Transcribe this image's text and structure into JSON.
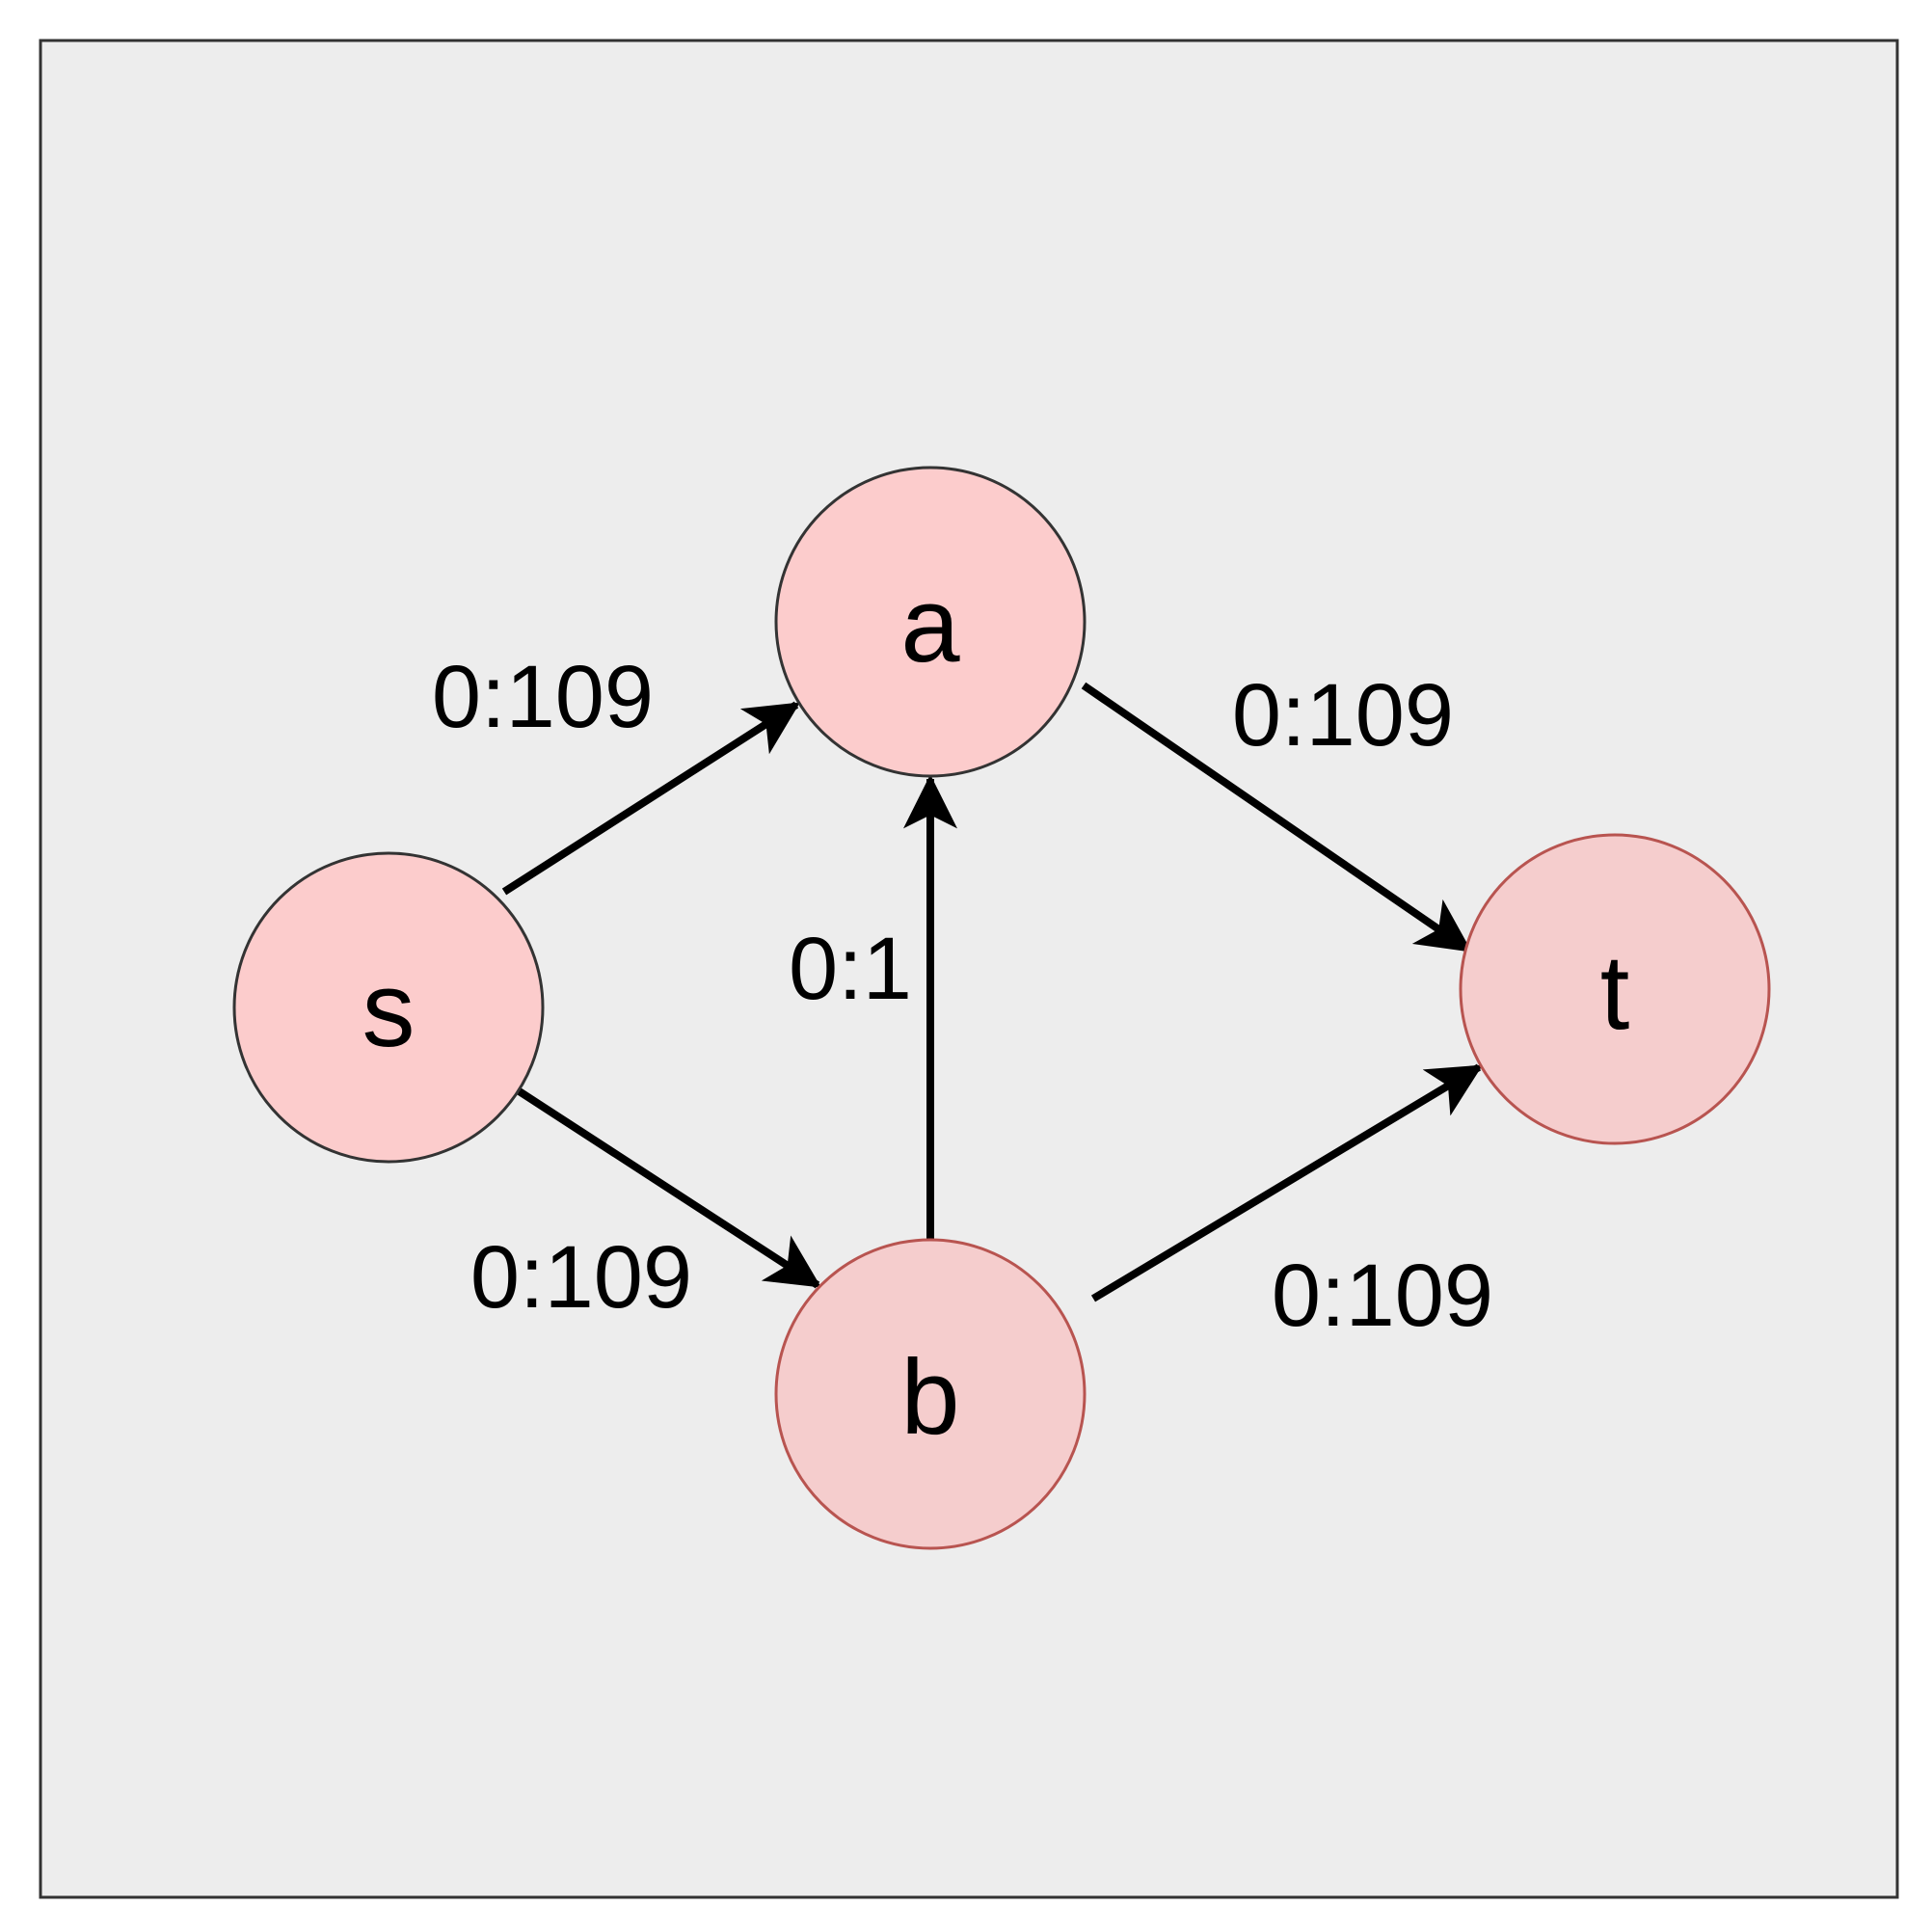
{
  "colors": {
    "background": "#ffffff",
    "panel_fill": "#ededed",
    "panel_stroke": "#333333",
    "node_fill_dark_border": "#fccccc",
    "node_fill_red_border": "#f5cdcd",
    "node_stroke_dark": "#333333",
    "node_stroke_red": "#b85450",
    "edge": "#000000",
    "text": "#000000"
  },
  "nodes": {
    "s": {
      "label": "s"
    },
    "a": {
      "label": "a"
    },
    "b": {
      "label": "b"
    },
    "t": {
      "label": "t"
    }
  },
  "edges": {
    "s_a": {
      "from": "s",
      "to": "a",
      "label": "0:109"
    },
    "s_b": {
      "from": "s",
      "to": "b",
      "label": "0:109"
    },
    "b_a": {
      "from": "b",
      "to": "a",
      "label": "0:1"
    },
    "a_t": {
      "from": "a",
      "to": "t",
      "label": "0:109"
    },
    "b_t": {
      "from": "b",
      "to": "t",
      "label": "0:109"
    }
  }
}
